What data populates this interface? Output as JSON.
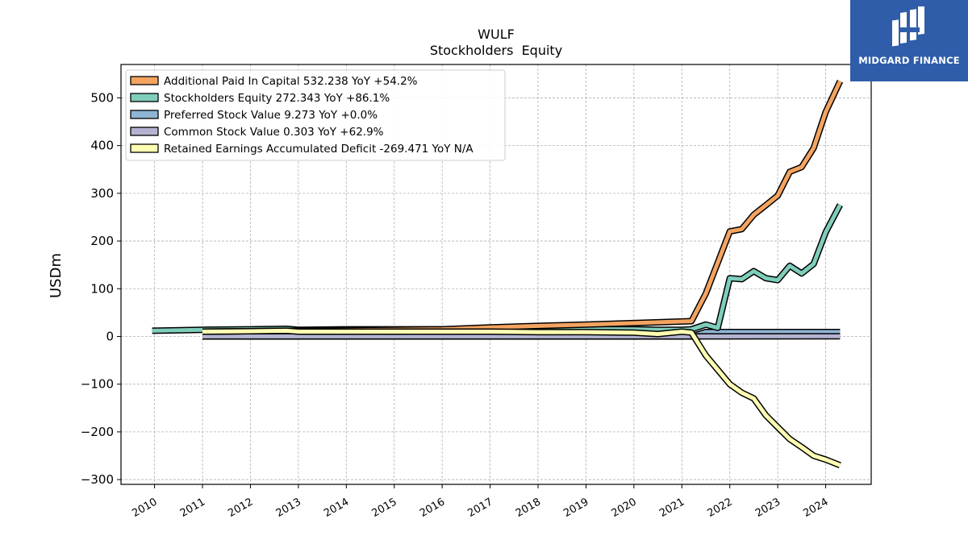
{
  "brand": {
    "name": "MIDGARD FINANCE",
    "color": "#2f5daa"
  },
  "chart_data": {
    "type": "line",
    "title": "WULF",
    "subtitle": "Stockholders  Equity",
    "ylabel": "USDm",
    "xlabel": "",
    "ylim": [
      -310,
      570
    ],
    "xlim": [
      2009.3,
      2024.95
    ],
    "yticks": [
      -300,
      -200,
      -100,
      0,
      100,
      200,
      300,
      400,
      500
    ],
    "ytick_labels": [
      "−300",
      "−200",
      "−100",
      "0",
      "100",
      "200",
      "300",
      "400",
      "500"
    ],
    "xticks": [
      2010,
      2011,
      2012,
      2013,
      2014,
      2015,
      2016,
      2017,
      2018,
      2019,
      2020,
      2021,
      2022,
      2023,
      2024
    ],
    "xtick_labels": [
      "2010",
      "2011",
      "2012",
      "2013",
      "2014",
      "2015",
      "2016",
      "2017",
      "2018",
      "2019",
      "2020",
      "2021",
      "2022",
      "2023",
      "2024"
    ],
    "grid": true,
    "legend_position": "top-left",
    "series": [
      {
        "name": "Additional Paid In Capital",
        "legend_label": "Additional Paid In Capital  532.238 YoY +54.2%",
        "color": "#f4a460",
        "x": [
          2011.0,
          2013.0,
          2016.0,
          2017.0,
          2018.0,
          2019.0,
          2020.0,
          2021.2,
          2021.5,
          2022.0,
          2022.25,
          2022.5,
          2022.75,
          2023.0,
          2023.25,
          2023.5,
          2023.75,
          2024.0,
          2024.3
        ],
        "y": [
          10,
          12,
          15,
          19,
          22,
          25,
          28,
          32,
          90,
          220,
          225,
          255,
          275,
          295,
          345,
          355,
          395,
          470,
          535
        ]
      },
      {
        "name": "Stockholders Equity",
        "legend_label": "Stockholders Equity  272.343 YoY +86.1%",
        "color": "#7fcdbb",
        "x": [
          2009.95,
          2011.0,
          2012.0,
          2012.75,
          2013.0,
          2014.0,
          2015.0,
          2016.0,
          2017.0,
          2018.0,
          2019.0,
          2020.0,
          2020.5,
          2021.0,
          2021.2,
          2021.5,
          2021.75,
          2022.0,
          2022.25,
          2022.5,
          2022.75,
          2023.0,
          2023.25,
          2023.5,
          2023.75,
          2024.0,
          2024.3
        ],
        "y": [
          12,
          14,
          15,
          16,
          14,
          15,
          15,
          15,
          15,
          15,
          15,
          15,
          14,
          14,
          15,
          25,
          18,
          122,
          120,
          137,
          122,
          118,
          148,
          132,
          152,
          218,
          276
        ]
      },
      {
        "name": "Preferred Stock Value",
        "legend_label": "Preferred Stock Value  9.273 YoY +0.0%",
        "color": "#8fb5d4",
        "x": [
          2011.0,
          2021.2,
          2021.5,
          2024.3
        ],
        "y": [
          0,
          0,
          9.273,
          9.273
        ]
      },
      {
        "name": "Common Stock Value",
        "legend_label": "Common Stock Value  0.303 YoY +62.9%",
        "color": "#b3b3d1",
        "x": [
          2011.0,
          2024.3
        ],
        "y": [
          0.1,
          0.303
        ]
      },
      {
        "name": "Retained Earnings Accumulated Deficit",
        "legend_label": "Retained Earnings Accumulated Deficit  -269.471 YoY N/A",
        "color": "#ffffb3",
        "x": [
          2011.0,
          2012.0,
          2012.75,
          2013.0,
          2014.0,
          2015.0,
          2016.0,
          2017.0,
          2018.0,
          2019.0,
          2020.0,
          2020.5,
          2021.0,
          2021.2,
          2021.5,
          2022.0,
          2022.25,
          2022.5,
          2022.75,
          2023.0,
          2023.25,
          2023.5,
          2023.75,
          2024.0,
          2024.3
        ],
        "y": [
          10,
          11,
          12,
          10,
          10,
          10,
          10,
          10,
          9,
          9,
          8,
          5,
          10,
          8,
          -40,
          -100,
          -118,
          -130,
          -165,
          -190,
          -215,
          -232,
          -250,
          -258,
          -270
        ]
      }
    ]
  }
}
